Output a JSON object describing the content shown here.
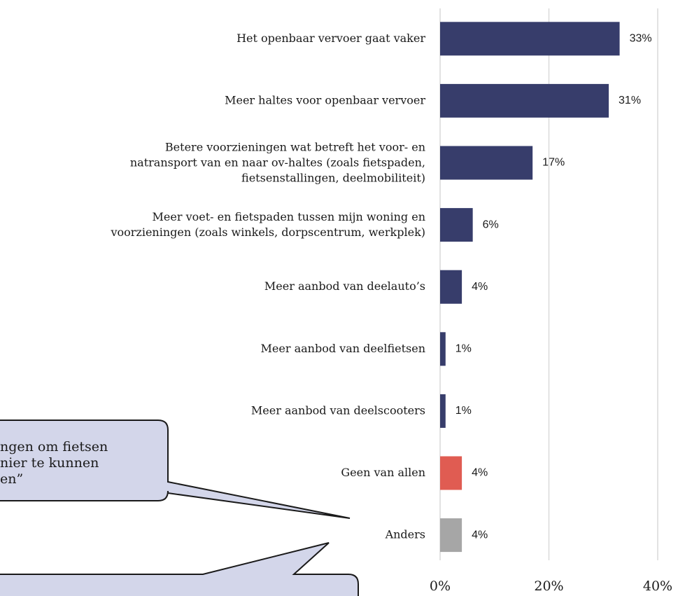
{
  "chart_data": {
    "type": "barh",
    "categories": [
      "Het openbaar vervoer gaat vaker",
      "Meer haltes voor openbaar vervoer",
      "Betere voorzieningen wat betreft het voor- en\nnatransport van en naar ov-haltes (zoals fietspaden,\nfietsenstallingen, deelmobiliteit)",
      "Meer voet- en fietspaden tussen mijn woning en\nvoorzieningen (zoals winkels, dorpscentrum, werkplek)",
      "Meer aanbod van deelauto’s",
      "Meer aanbod van deelfietsen",
      "Meer aanbod van deelscooters",
      "Geen van allen",
      "Anders"
    ],
    "values": [
      33,
      31,
      17,
      6,
      4,
      1,
      1,
      4,
      4
    ],
    "value_labels": [
      "33%",
      "31%",
      "17%",
      "6%",
      "4%",
      "1%",
      "1%",
      "4%",
      "4%"
    ],
    "colors": [
      "#373d6b",
      "#373d6b",
      "#373d6b",
      "#373d6b",
      "#373d6b",
      "#373d6b",
      "#373d6b",
      "#e05c52",
      "#a6a6a6"
    ],
    "xlim": [
      0,
      40
    ],
    "xticks": [
      {
        "value": 0,
        "label": "0%"
      },
      {
        "value": 20,
        "label": "20%"
      },
      {
        "value": 40,
        "label": "40%"
      }
    ],
    "grid": true,
    "callouts": [
      {
        "lines": [
          "ngen om fietsen",
          "nier te kunnen",
          "en”"
        ]
      }
    ]
  }
}
